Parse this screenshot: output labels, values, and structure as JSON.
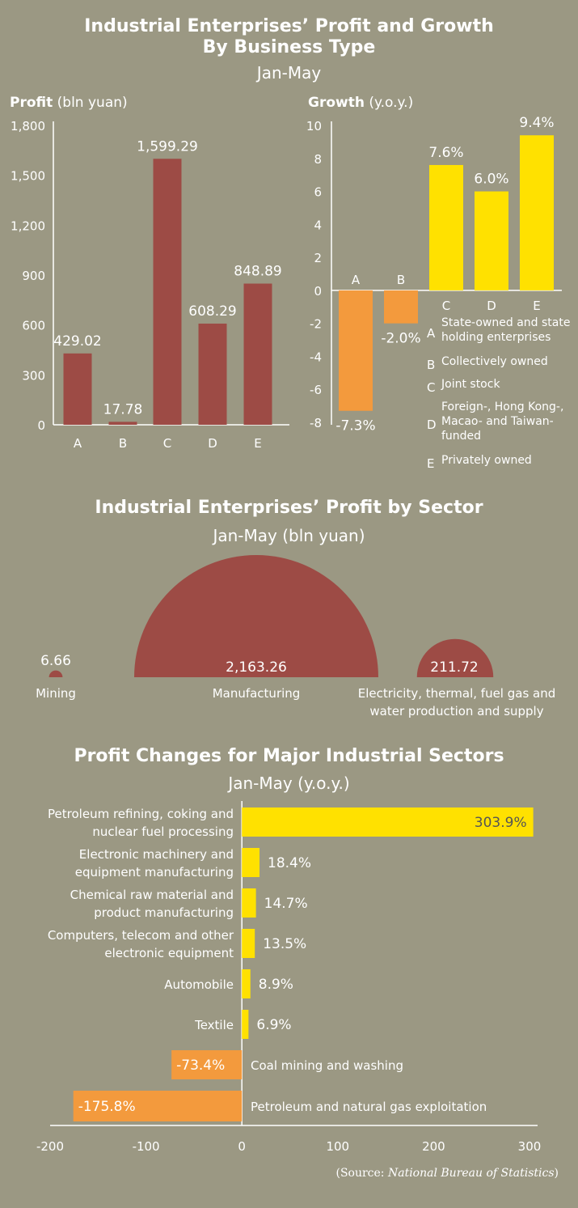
{
  "header": {
    "title_line1": "Industrial Enterprises’ Profit and Growth",
    "title_line2": "By Business Type",
    "period": "Jan-May"
  },
  "colors": {
    "background": "#9b9883",
    "profit_bar": "#9d4b45",
    "growth_pos": "#ffe100",
    "growth_neg": "#f39a3d"
  },
  "chart_data": [
    {
      "type": "bar",
      "title_bold": "Profit",
      "title_rest": "(bln yuan)",
      "categories": [
        "A",
        "B",
        "C",
        "D",
        "E"
      ],
      "values": [
        429.02,
        17.78,
        1599.29,
        608.29,
        848.89
      ],
      "value_labels": [
        "429.02",
        "17.78",
        "1,599.29",
        "608.29",
        "848.89"
      ],
      "yticks": [
        0,
        300,
        600,
        900,
        1200,
        1500,
        1800
      ],
      "ytick_labels": [
        "0",
        "300",
        "600",
        "900",
        "1,200",
        "1,500",
        "1,800"
      ],
      "ylim": [
        0,
        1800
      ]
    },
    {
      "type": "bar",
      "title_bold": "Growth",
      "title_rest": "(y.o.y.)",
      "categories": [
        "A",
        "B",
        "C",
        "D",
        "E"
      ],
      "values": [
        -7.3,
        -2.0,
        7.6,
        6.0,
        9.4
      ],
      "value_labels": [
        "-7.3%",
        "-2.0%",
        "7.6%",
        "6.0%",
        "9.4%"
      ],
      "yticks": [
        -8,
        -6,
        -4,
        -2,
        0,
        2,
        4,
        6,
        8,
        10
      ],
      "ytick_labels": [
        "-8",
        "-6",
        "-4",
        "-2",
        "0",
        "2",
        "4",
        "6",
        "8",
        "10"
      ],
      "ylim": [
        -8,
        10
      ],
      "legend": [
        {
          "key": "A",
          "lines": [
            "State-owned and state",
            "holding enterprises"
          ]
        },
        {
          "key": "B",
          "lines": [
            "Collectively owned"
          ]
        },
        {
          "key": "C",
          "lines": [
            "Joint stock"
          ]
        },
        {
          "key": "D",
          "lines": [
            "Foreign-, Hong Kong-,",
            "Macao- and Taiwan-",
            "funded"
          ]
        },
        {
          "key": "E",
          "lines": [
            "Privately owned"
          ]
        }
      ]
    },
    {
      "type": "pie",
      "title": "Industrial Enterprises’ Profit by Sector",
      "subtitle": "Jan-May (bln yuan)",
      "categories": [
        "Mining",
        "Manufacturing",
        "Electricity, thermal, fuel gas and water production and supply"
      ],
      "category_lines": [
        [
          "Mining"
        ],
        [
          "Manufacturing"
        ],
        [
          "Electricity, thermal, fuel gas and",
          "water production and supply"
        ]
      ],
      "values": [
        6.66,
        2163.26,
        211.72
      ],
      "value_labels": [
        "6.66",
        "2,163.26",
        "211.72"
      ]
    },
    {
      "type": "bar",
      "orientation": "horizontal",
      "title": "Profit Changes for Major Industrial Sectors",
      "subtitle": "Jan-May (y.o.y.)",
      "categories": [
        [
          "Petroleum refining, coking and",
          "nuclear fuel processing"
        ],
        [
          "Electronic machinery and",
          "equipment manufacturing"
        ],
        [
          "Chemical raw material and",
          "product manufacturing"
        ],
        [
          "Computers, telecom and other",
          "electronic equipment"
        ],
        [
          "Automobile"
        ],
        [
          "Textile"
        ],
        [
          "Coal mining and washing"
        ],
        [
          "Petroleum and natural gas exploitation"
        ]
      ],
      "values": [
        303.9,
        18.4,
        14.7,
        13.5,
        8.9,
        6.9,
        -73.4,
        -175.8
      ],
      "value_labels": [
        "303.9%",
        "18.4%",
        "14.7%",
        "13.5%",
        "8.9%",
        "6.9%",
        "-73.4%",
        "-175.8%"
      ],
      "xticks": [
        -200,
        -100,
        0,
        100,
        200,
        300
      ],
      "xtick_labels": [
        "-200",
        "-100",
        "0",
        "100",
        "200",
        "300"
      ],
      "xlim": [
        -200,
        300
      ]
    }
  ],
  "source": {
    "prefix": "(Source: ",
    "name": "National Bureau of Statistics",
    "suffix": ")"
  }
}
